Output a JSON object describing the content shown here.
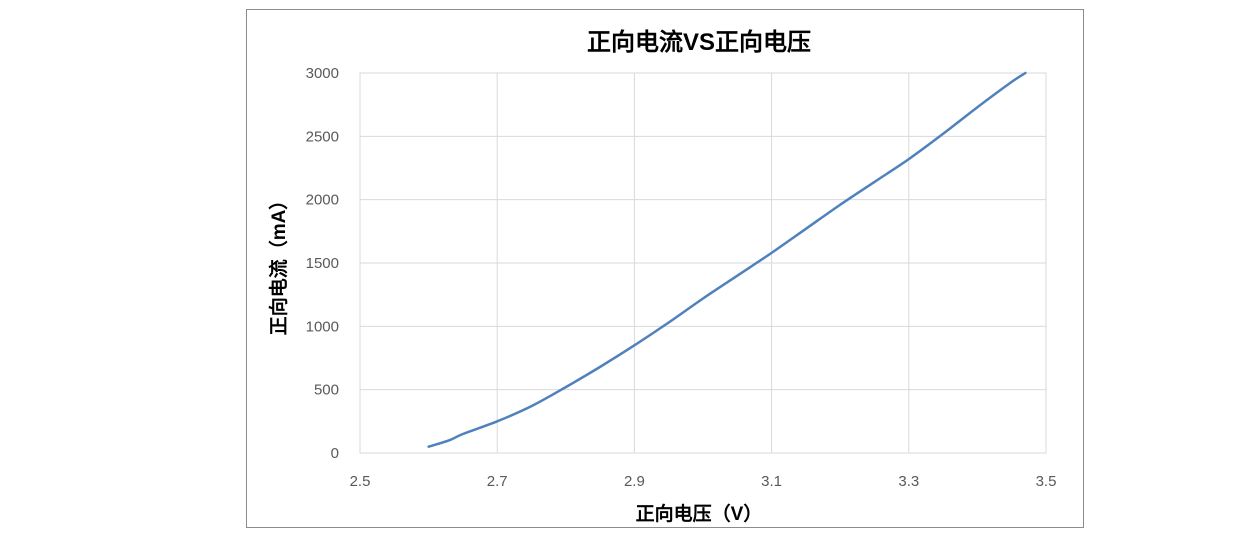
{
  "chart_data": {
    "type": "line",
    "title": "正向电流VS正向电压",
    "xlabel": "正向电压（V）",
    "ylabel": "正向电流（mA）",
    "xlim": [
      2.5,
      3.5
    ],
    "ylim": [
      0,
      3000
    ],
    "xticks": [
      2.5,
      2.7,
      2.9,
      3.1,
      3.3,
      3.5
    ],
    "xtick_labels": [
      "2.5",
      "2.7",
      "2.9",
      "3.1",
      "3.3",
      "3.5"
    ],
    "yticks": [
      0,
      500,
      1000,
      1500,
      2000,
      2500,
      3000
    ],
    "ytick_labels": [
      "0",
      "500",
      "1000",
      "1500",
      "2000",
      "2500",
      "3000"
    ],
    "grid": true,
    "legend": "none",
    "series": [
      {
        "color": "#4f81bd",
        "x": [
          2.6,
          2.63,
          2.65,
          2.7,
          2.75,
          2.8,
          2.85,
          2.9,
          2.95,
          3.0,
          3.05,
          3.1,
          3.15,
          3.2,
          3.25,
          3.3,
          3.35,
          3.4,
          3.45,
          3.47
        ],
        "y": [
          50,
          100,
          150,
          250,
          370,
          520,
          680,
          850,
          1030,
          1220,
          1400,
          1580,
          1770,
          1960,
          2140,
          2320,
          2520,
          2730,
          2930,
          3000
        ]
      }
    ]
  }
}
